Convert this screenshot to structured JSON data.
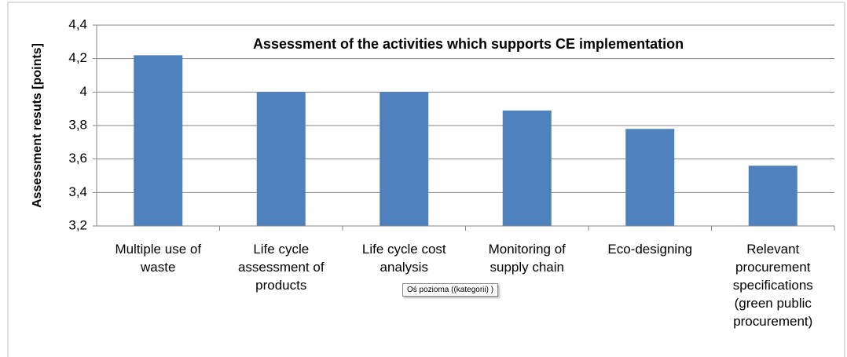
{
  "chart_data": {
    "type": "bar",
    "title": "Assessment of the activities which supports CE implementation",
    "y_label": "Assessment  resuts  [points]",
    "categories": [
      "Multiple use of waste",
      "Life cycle assessment of products",
      "Life cycle cost analysis",
      "Monitoring of supply chain",
      "Eco-designing",
      "Relevant procurement specifications (green public procurement)"
    ],
    "values": [
      4.22,
      4.0,
      4.0,
      3.89,
      3.78,
      3.56
    ],
    "color": "#4f81bd",
    "ylim": [
      3.2,
      4.4
    ],
    "yticks": [
      {
        "value": 3.2,
        "label": "3,2"
      },
      {
        "value": 3.4,
        "label": "3,4"
      },
      {
        "value": 3.6,
        "label": "3,6"
      },
      {
        "value": 3.8,
        "label": "3,8"
      },
      4,
      {
        "value": 4.2,
        "label": "4,2"
      },
      {
        "value": 4.4,
        "label": "4,4"
      }
    ],
    "grid": true,
    "tooltip": "Oś  pozioma  ((kategorii) )"
  }
}
